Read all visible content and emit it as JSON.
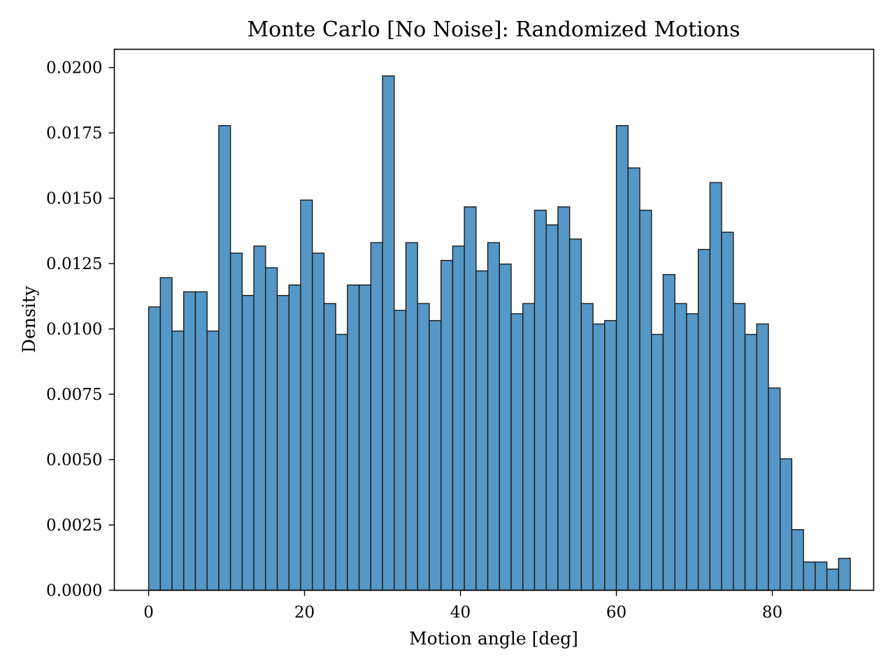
{
  "chart_data": {
    "type": "bar",
    "title": "Monte Carlo [No Noise]: Randomized Motions",
    "xlabel": "Motion angle [deg]",
    "ylabel": "Density",
    "xlim": [
      -4.4,
      93.0
    ],
    "ylim": [
      0.0,
      0.0207
    ],
    "bin_width": 1.5,
    "x_start": 0.0,
    "x_ticks": [
      0,
      20,
      40,
      60,
      80
    ],
    "x_tick_labels": [
      "0",
      "20",
      "40",
      "60",
      "80"
    ],
    "y_ticks": [
      0.0,
      0.0025,
      0.005,
      0.0075,
      0.01,
      0.0125,
      0.015,
      0.0175,
      0.02
    ],
    "y_tick_labels": [
      "0.0000",
      "0.0025",
      "0.0050",
      "0.0075",
      "0.0100",
      "0.0125",
      "0.0150",
      "0.0175",
      "0.0200"
    ],
    "values": [
      0.01084,
      0.01196,
      0.00992,
      0.01142,
      0.01142,
      0.00992,
      0.01778,
      0.0129,
      0.01128,
      0.01317,
      0.01234,
      0.01128,
      0.01168,
      0.01493,
      0.0129,
      0.01097,
      0.00979,
      0.01168,
      0.01168,
      0.0133,
      0.01968,
      0.01071,
      0.0133,
      0.01097,
      0.01032,
      0.01262,
      0.01317,
      0.01467,
      0.01222,
      0.0133,
      0.01248,
      0.01058,
      0.01097,
      0.01454,
      0.01398,
      0.01467,
      0.01344,
      0.01097,
      0.01019,
      0.01032,
      0.01778,
      0.01616,
      0.01454,
      0.00979,
      0.01208,
      0.01097,
      0.01058,
      0.01304,
      0.0156,
      0.0137,
      0.01097,
      0.00979,
      0.01019,
      0.00774,
      0.00503,
      0.00232,
      0.00108,
      0.00108,
      0.00081,
      0.00122
    ],
    "bar_color": "#5597c6",
    "edge_color": "#1a1a1a",
    "grid": false,
    "legend": false
  }
}
